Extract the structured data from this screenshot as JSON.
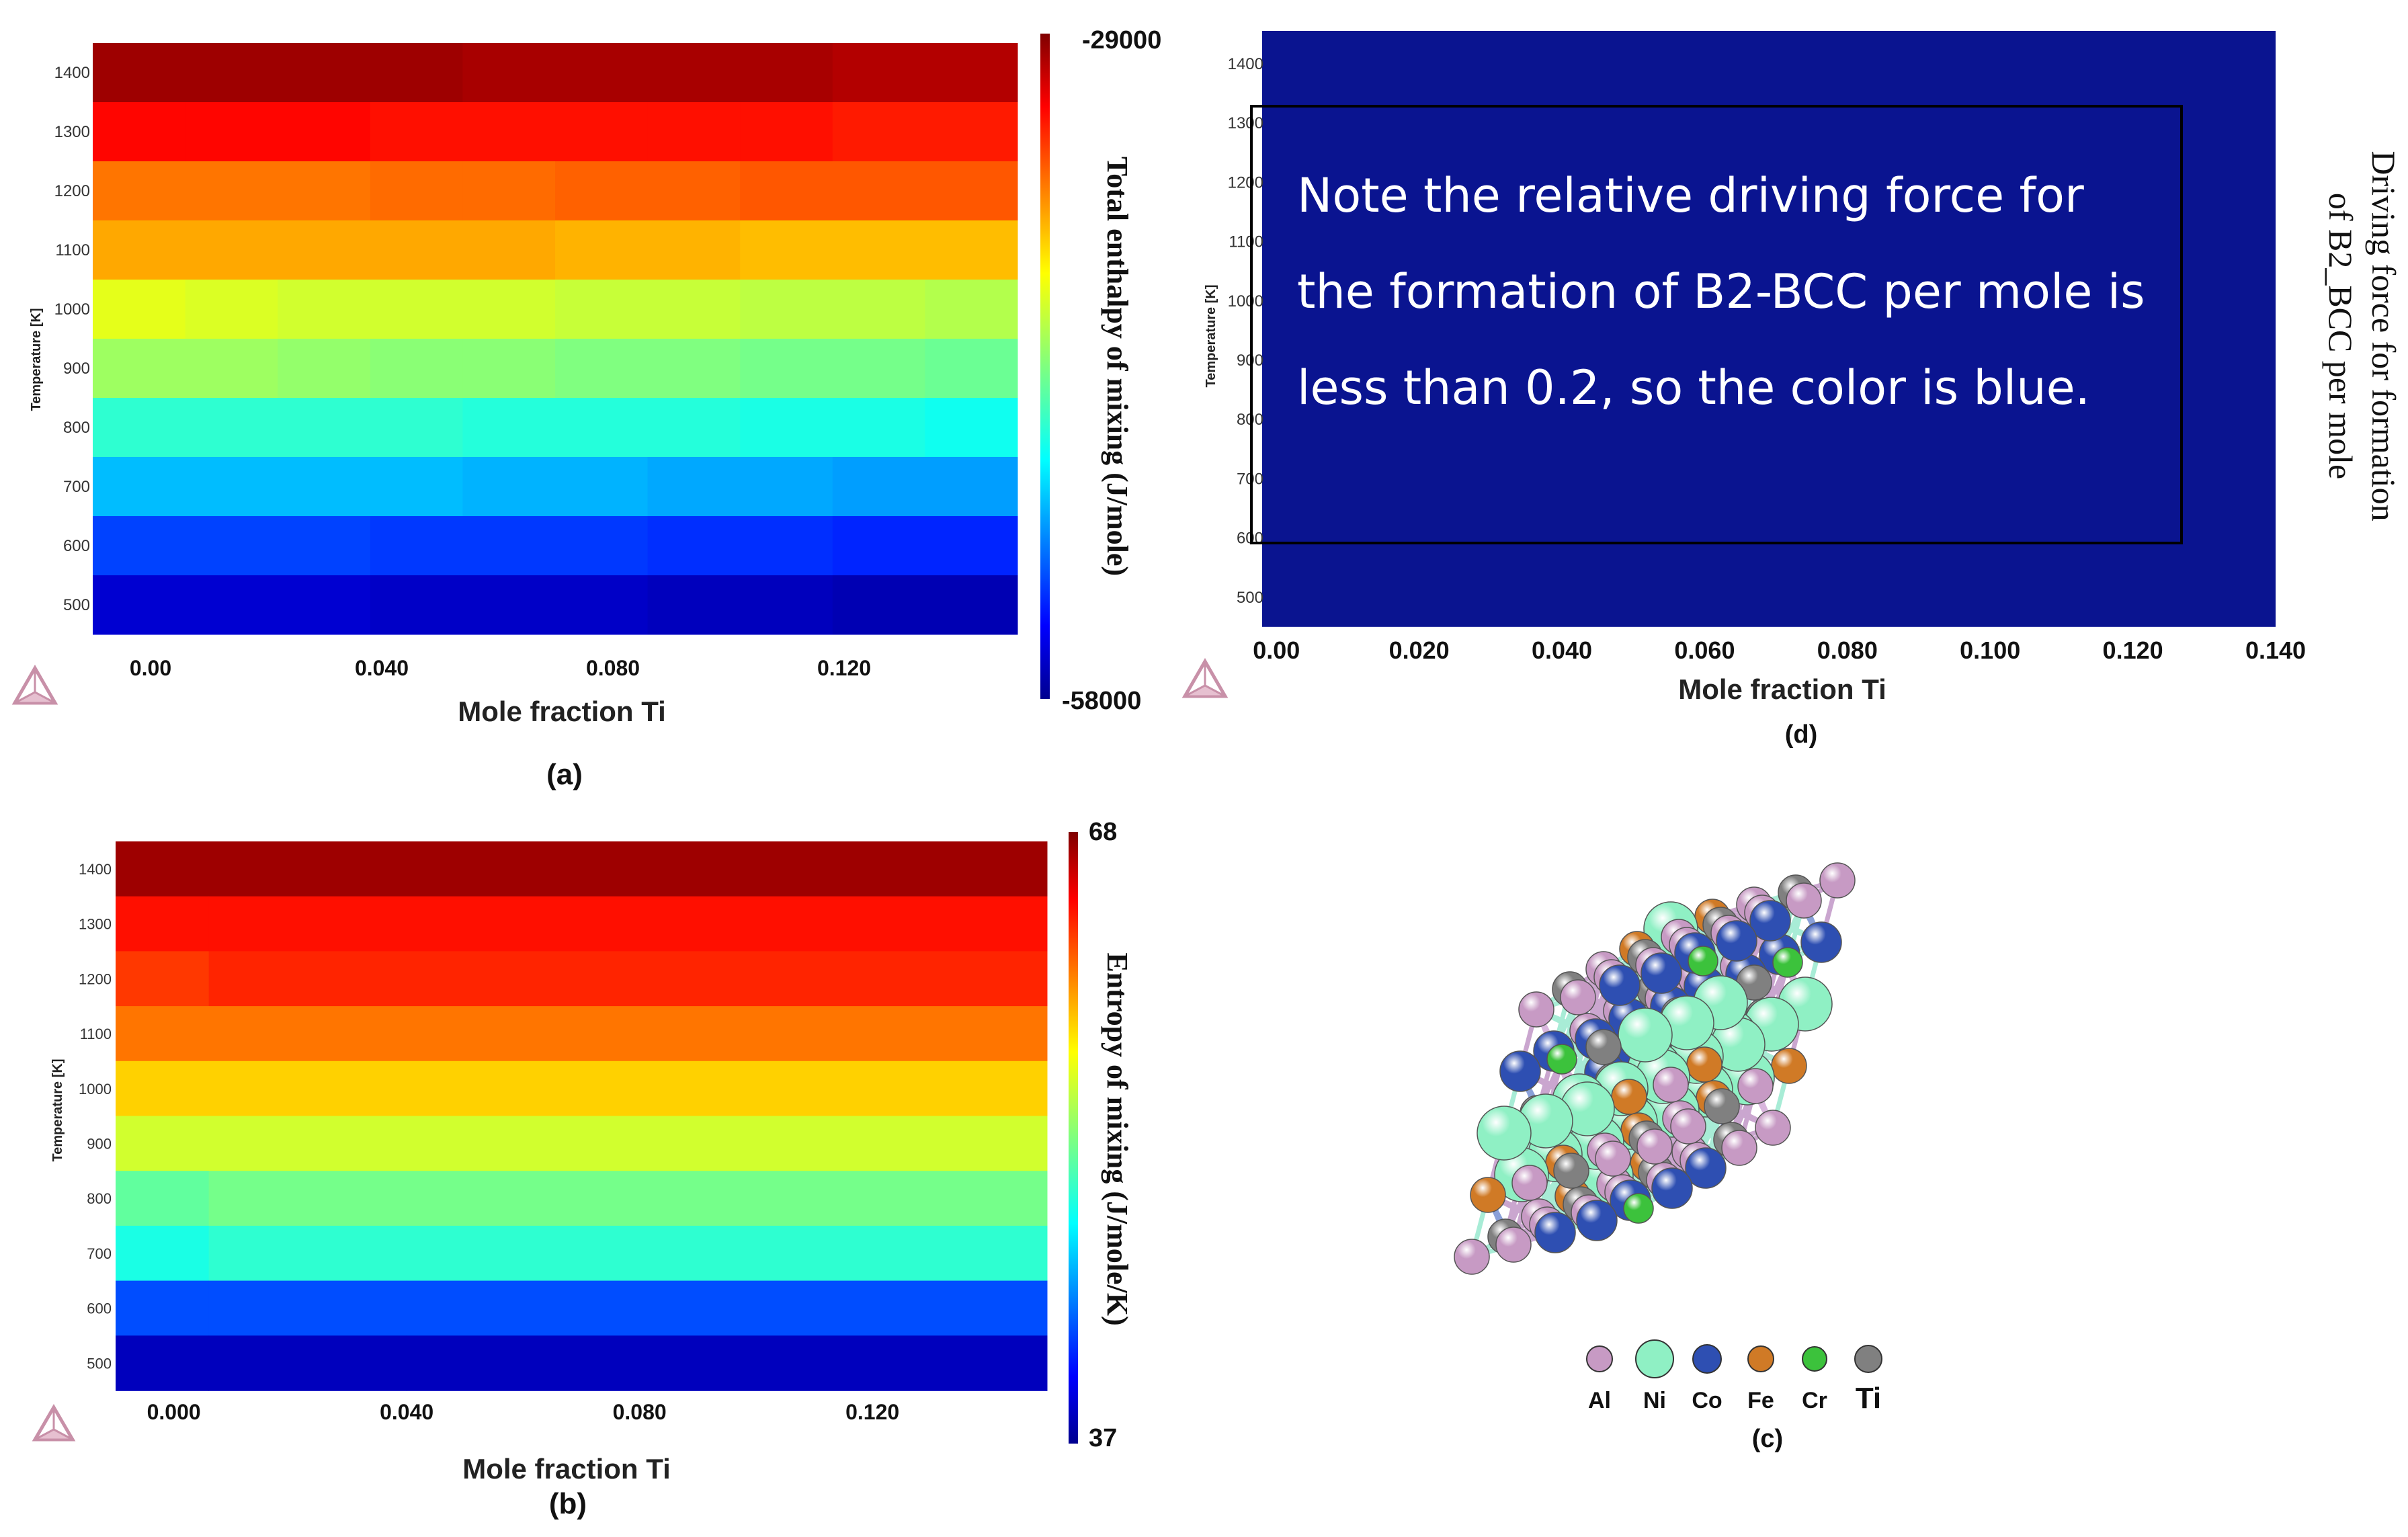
{
  "panels": {
    "a": {
      "caption": "(a)"
    },
    "b": {
      "caption": "(b)"
    },
    "c": {
      "caption": "(c)"
    },
    "d": {
      "caption": "(d)",
      "note": "Note the relative driving force for the formation of B2-BCC per mole is less than 0.2, so the color is blue."
    }
  },
  "crystal_legend": {
    "elements": [
      {
        "label": "Al",
        "color": "#c79ac4"
      },
      {
        "label": "Ni",
        "color": "#8ff0c4"
      },
      {
        "label": "Co",
        "color": "#2e4fb2"
      },
      {
        "label": "Fe",
        "color": "#d07a26"
      },
      {
        "label": "Cr",
        "color": "#3cc23c"
      },
      {
        "label": "Ti",
        "color": "#808080"
      }
    ]
  },
  "chart_data": [
    {
      "id": "a",
      "type": "heatmap",
      "title": "(a)",
      "xlabel": "Mole fraction Ti",
      "ylabel": "Temperature [K]",
      "xlim": [
        -0.01,
        0.15
      ],
      "x_ticks": [
        {
          "value": 0.0,
          "label": "0.00"
        },
        {
          "value": 0.04,
          "label": "0.040"
        },
        {
          "value": 0.08,
          "label": "0.080"
        },
        {
          "value": 0.12,
          "label": "0.120"
        }
      ],
      "y_ticks": [
        500,
        600,
        700,
        800,
        900,
        1000,
        1100,
        1200,
        1300,
        1400
      ],
      "x_bands": [
        -0.01,
        0.006,
        0.022,
        0.038,
        0.054,
        0.07,
        0.086,
        0.102,
        0.118,
        0.134,
        0.15
      ],
      "temperatures": [
        1400,
        1300,
        1200,
        1100,
        1000,
        900,
        800,
        700,
        600,
        500
      ],
      "colorbar": {
        "label": "Total enthalpy of mixing (J/mole)",
        "max": -29000,
        "min": -58000,
        "max_label": "-29000",
        "min_label": "-58000"
      },
      "values": [
        [
          0.97,
          0.97,
          0.97,
          0.97,
          0.96,
          0.96,
          0.96,
          0.96,
          0.95,
          0.95
        ],
        [
          0.87,
          0.87,
          0.87,
          0.86,
          0.86,
          0.86,
          0.86,
          0.86,
          0.85,
          0.85
        ],
        [
          0.76,
          0.76,
          0.76,
          0.77,
          0.77,
          0.78,
          0.78,
          0.79,
          0.79,
          0.79
        ],
        [
          0.71,
          0.71,
          0.71,
          0.71,
          0.71,
          0.7,
          0.7,
          0.69,
          0.69,
          0.69
        ],
        [
          0.6,
          0.59,
          0.58,
          0.58,
          0.58,
          0.57,
          0.57,
          0.56,
          0.56,
          0.55
        ],
        [
          0.53,
          0.53,
          0.52,
          0.51,
          0.51,
          0.5,
          0.5,
          0.49,
          0.49,
          0.48
        ],
        [
          0.42,
          0.42,
          0.42,
          0.42,
          0.41,
          0.41,
          0.41,
          0.4,
          0.4,
          0.39
        ],
        [
          0.31,
          0.31,
          0.31,
          0.31,
          0.3,
          0.3,
          0.29,
          0.29,
          0.28,
          0.28
        ],
        [
          0.19,
          0.19,
          0.19,
          0.18,
          0.18,
          0.18,
          0.17,
          0.17,
          0.16,
          0.16
        ],
        [
          0.08,
          0.08,
          0.08,
          0.07,
          0.07,
          0.07,
          0.06,
          0.06,
          0.05,
          0.05
        ]
      ]
    },
    {
      "id": "b",
      "type": "heatmap",
      "title": "(b)",
      "xlabel": "Mole fraction Ti",
      "ylabel": "Temperature [K]",
      "xlim": [
        -0.01,
        0.15
      ],
      "x_ticks": [
        {
          "value": 0.0,
          "label": "0.000"
        },
        {
          "value": 0.04,
          "label": "0.040"
        },
        {
          "value": 0.08,
          "label": "0.080"
        },
        {
          "value": 0.12,
          "label": "0.120"
        }
      ],
      "y_ticks": [
        500,
        600,
        700,
        800,
        900,
        1000,
        1100,
        1200,
        1300,
        1400
      ],
      "x_bands": [
        -0.01,
        0.006,
        0.04,
        0.15
      ],
      "temperatures": [
        1400,
        1300,
        1200,
        1100,
        1000,
        900,
        800,
        700,
        600,
        500
      ],
      "colorbar": {
        "label": "Entropy of mixing (J/mole/K)",
        "max": 68,
        "min": 37,
        "max_label": "68",
        "min_label": "37"
      },
      "values": [
        [
          0.97,
          0.97,
          0.97
        ],
        [
          0.86,
          0.86,
          0.86
        ],
        [
          0.82,
          0.84,
          0.84
        ],
        [
          0.76,
          0.76,
          0.76
        ],
        [
          0.67,
          0.67,
          0.67
        ],
        [
          0.58,
          0.58,
          0.58
        ],
        [
          0.47,
          0.49,
          0.49
        ],
        [
          0.4,
          0.42,
          0.42
        ],
        [
          0.2,
          0.2,
          0.2
        ],
        [
          0.06,
          0.06,
          0.06
        ]
      ]
    },
    {
      "id": "d",
      "type": "heatmap",
      "title": "(d)",
      "xlabel": "Mole fraction Ti",
      "ylabel": "Temperature [K]",
      "xlim": [
        -0.002,
        0.14
      ],
      "x_ticks": [
        {
          "value": 0.0,
          "label": "0.00"
        },
        {
          "value": 0.02,
          "label": "0.020"
        },
        {
          "value": 0.04,
          "label": "0.040"
        },
        {
          "value": 0.06,
          "label": "0.060"
        },
        {
          "value": 0.08,
          "label": "0.080"
        },
        {
          "value": 0.1,
          "label": "0.100"
        },
        {
          "value": 0.12,
          "label": "0.120"
        },
        {
          "value": 0.14,
          "label": "0.140"
        }
      ],
      "y_ticks": [
        500,
        600,
        700,
        800,
        900,
        1000,
        1100,
        1200,
        1300,
        1400
      ],
      "x_bands": [
        -0.002,
        0.14
      ],
      "temperatures": [
        1400
      ],
      "colorbar": {
        "label": "Driving force for formation of B2_BCC per mole",
        "label_line1": "Driving force for formation",
        "label_line2": "of B2_BCC per mole"
      },
      "values": [
        [
          0.0
        ]
      ]
    }
  ]
}
